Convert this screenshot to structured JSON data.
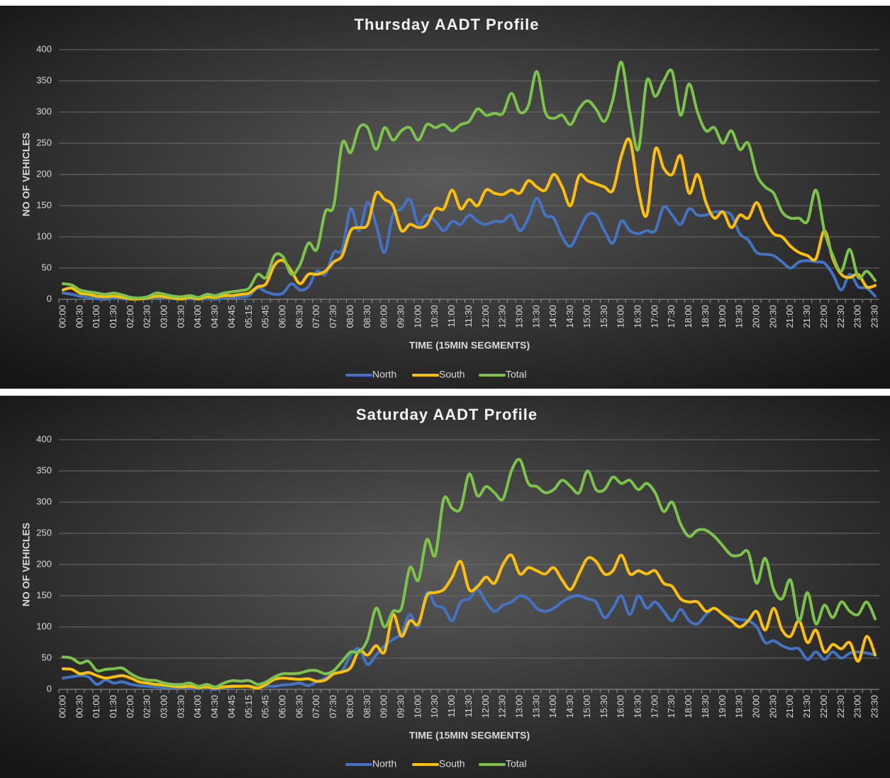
{
  "chart_data": [
    {
      "type": "line",
      "title": "Thursday AADT Profile",
      "x_label": "TIME (15MIN SEGMENTS)",
      "y_label": "NO OF VEHICLES",
      "categories": [
        "00:00",
        null,
        "00:30",
        null,
        "01:00",
        null,
        "01:30",
        null,
        "02:00",
        null,
        "02:30",
        null,
        "03:00",
        null,
        "03:30",
        null,
        "04:00",
        null,
        "04:30",
        null,
        "04:45",
        null,
        "05:15",
        null,
        "05:45",
        null,
        "06:00",
        null,
        "06:30",
        null,
        "07:00",
        null,
        "07:30",
        null,
        "08:00",
        null,
        "08:30",
        null,
        "09:00",
        null,
        "09:30",
        null,
        "10:00",
        null,
        "10:30",
        null,
        "11:00",
        null,
        "11:30",
        null,
        "12:00",
        null,
        "12:30",
        null,
        "13:00",
        null,
        "13:30",
        null,
        "14:00",
        null,
        "14:30",
        null,
        "15:00",
        null,
        "15:30",
        null,
        "16:00",
        null,
        "16:30",
        null,
        "17:00",
        null,
        "17:30",
        null,
        "18:00",
        null,
        "18:30",
        null,
        "19:00",
        null,
        "19:30",
        null,
        "20:00",
        null,
        "20:30",
        null,
        "21:00",
        null,
        "21:30",
        null,
        "22:00",
        null,
        "22:30",
        null,
        "23:00",
        null,
        "23:30"
      ],
      "series": [
        {
          "name": "North",
          "color": "#4472c4",
          "values": [
            10,
            8,
            5,
            3,
            1,
            0,
            2,
            1,
            0,
            0,
            1,
            3,
            2,
            1,
            0,
            1,
            0,
            1,
            0,
            2,
            3,
            4,
            6,
            18,
            12,
            8,
            10,
            25,
            15,
            20,
            45,
            40,
            75,
            80,
            145,
            110,
            155,
            120,
            75,
            135,
            145,
            160,
            120,
            135,
            125,
            110,
            125,
            120,
            135,
            125,
            120,
            125,
            125,
            135,
            110,
            130,
            162,
            135,
            130,
            100,
            85,
            110,
            135,
            135,
            110,
            90,
            125,
            110,
            105,
            110,
            110,
            148,
            135,
            120,
            145,
            135,
            135,
            140,
            140,
            135,
            105,
            95,
            75,
            72,
            70,
            60,
            50,
            60,
            62,
            60,
            58,
            40,
            15,
            40,
            20,
            18,
            5
          ]
        },
        {
          "name": "South",
          "color": "#ffc000",
          "values": [
            15,
            18,
            10,
            8,
            5,
            4,
            5,
            3,
            1,
            1,
            2,
            5,
            4,
            2,
            1,
            3,
            1,
            4,
            3,
            6,
            6,
            8,
            10,
            20,
            25,
            55,
            62,
            45,
            25,
            40,
            40,
            45,
            60,
            70,
            110,
            115,
            120,
            170,
            160,
            150,
            110,
            120,
            115,
            120,
            145,
            145,
            175,
            145,
            160,
            150,
            175,
            170,
            168,
            175,
            170,
            190,
            180,
            175,
            200,
            180,
            150,
            198,
            190,
            185,
            180,
            175,
            230,
            255,
            175,
            135,
            240,
            210,
            200,
            230,
            170,
            200,
            155,
            130,
            140,
            115,
            135,
            130,
            155,
            125,
            105,
            100,
            85,
            75,
            70,
            65,
            110,
            65,
            40,
            35,
            40,
            20,
            22
          ]
        },
        {
          "name": "Total",
          "color": "#7cc34a",
          "values": [
            25,
            23,
            15,
            12,
            10,
            8,
            10,
            7,
            3,
            2,
            4,
            10,
            8,
            5,
            4,
            6,
            3,
            8,
            6,
            10,
            12,
            14,
            18,
            40,
            35,
            70,
            68,
            40,
            55,
            90,
            80,
            140,
            150,
            250,
            235,
            275,
            275,
            240,
            275,
            255,
            270,
            275,
            255,
            280,
            275,
            280,
            270,
            280,
            285,
            305,
            295,
            298,
            298,
            330,
            300,
            310,
            365,
            300,
            290,
            295,
            280,
            305,
            318,
            305,
            285,
            320,
            380,
            300,
            240,
            350,
            325,
            350,
            365,
            295,
            345,
            300,
            270,
            275,
            250,
            270,
            240,
            250,
            200,
            180,
            170,
            140,
            130,
            130,
            125,
            175,
            110,
            70,
            45,
            80,
            35,
            45,
            30
          ]
        }
      ],
      "ylim": [
        0,
        400
      ],
      "yticks": [
        0,
        50,
        100,
        150,
        200,
        250,
        300,
        350,
        400
      ],
      "grid": true,
      "legend": "bottom"
    },
    {
      "type": "line",
      "title": "Saturday AADT Profile",
      "x_label": "TIME (15MIN SEGMENTS)",
      "y_label": "NO OF VEHICLES",
      "categories": [
        "00:00",
        null,
        "00:30",
        null,
        "01:00",
        null,
        "01:30",
        null,
        "02:00",
        null,
        "02:30",
        null,
        "03:00",
        null,
        "03:30",
        null,
        "04:00",
        null,
        "04:30",
        null,
        "04:45",
        null,
        "05:15",
        null,
        "05:45",
        null,
        "06:00",
        null,
        "06:30",
        null,
        "07:00",
        null,
        "07:30",
        null,
        "08:00",
        null,
        "08:30",
        null,
        "09:00",
        null,
        "09:30",
        null,
        "10:00",
        null,
        "10:30",
        null,
        "11:00",
        null,
        "11:30",
        null,
        "12:00",
        null,
        "12:30",
        null,
        "13:00",
        null,
        "13:30",
        null,
        "14:00",
        null,
        "14:30",
        null,
        "15:00",
        null,
        "15:30",
        null,
        "16:00",
        null,
        "16:30",
        null,
        "17:00",
        null,
        "17:30",
        null,
        "18:00",
        null,
        "18:30",
        null,
        "19:00",
        null,
        "19:30",
        null,
        "20:00",
        null,
        "20:30",
        null,
        "21:00",
        null,
        "21:30",
        null,
        "22:00",
        null,
        "22:30",
        null,
        "23:00",
        null,
        "23:30"
      ],
      "series": [
        {
          "name": "North",
          "color": "#4472c4",
          "values": [
            18,
            20,
            22,
            20,
            8,
            15,
            10,
            12,
            8,
            6,
            5,
            4,
            3,
            3,
            2,
            3,
            1,
            2,
            0,
            3,
            4,
            5,
            5,
            3,
            5,
            5,
            7,
            8,
            10,
            6,
            12,
            18,
            25,
            30,
            55,
            65,
            40,
            55,
            70,
            80,
            90,
            120,
            100,
            155,
            135,
            130,
            110,
            140,
            145,
            160,
            140,
            125,
            135,
            140,
            150,
            145,
            130,
            125,
            130,
            140,
            148,
            150,
            145,
            140,
            115,
            130,
            150,
            120,
            150,
            130,
            140,
            125,
            110,
            128,
            110,
            105,
            120,
            130,
            120,
            115,
            112,
            110,
            100,
            75,
            78,
            70,
            65,
            65,
            48,
            60,
            48,
            60,
            50,
            58,
            60,
            58,
            55
          ]
        },
        {
          "name": "South",
          "color": "#ffc000",
          "values": [
            33,
            32,
            25,
            27,
            22,
            18,
            20,
            22,
            18,
            12,
            10,
            8,
            7,
            5,
            4,
            5,
            3,
            4,
            2,
            4,
            5,
            5,
            5,
            2,
            8,
            16,
            18,
            17,
            16,
            17,
            13,
            15,
            25,
            28,
            35,
            62,
            55,
            70,
            60,
            120,
            85,
            110,
            105,
            150,
            155,
            160,
            180,
            205,
            160,
            165,
            180,
            170,
            200,
            215,
            185,
            195,
            190,
            185,
            195,
            175,
            160,
            185,
            210,
            205,
            185,
            190,
            215,
            185,
            190,
            185,
            190,
            170,
            165,
            145,
            140,
            140,
            125,
            130,
            120,
            110,
            100,
            110,
            125,
            95,
            130,
            95,
            85,
            110,
            75,
            95,
            60,
            72,
            65,
            75,
            45,
            85,
            55
          ]
        },
        {
          "name": "Total",
          "color": "#7cc34a",
          "values": [
            52,
            50,
            42,
            45,
            30,
            32,
            33,
            34,
            25,
            18,
            15,
            14,
            10,
            8,
            8,
            10,
            5,
            8,
            4,
            10,
            14,
            13,
            14,
            8,
            12,
            20,
            25,
            25,
            26,
            30,
            30,
            25,
            30,
            45,
            60,
            60,
            80,
            130,
            100,
            125,
            130,
            195,
            175,
            240,
            215,
            305,
            290,
            290,
            345,
            310,
            325,
            315,
            305,
            350,
            368,
            330,
            325,
            315,
            320,
            335,
            325,
            315,
            350,
            320,
            320,
            340,
            330,
            335,
            320,
            330,
            315,
            285,
            300,
            265,
            245,
            255,
            255,
            245,
            230,
            215,
            215,
            220,
            170,
            210,
            160,
            145,
            175,
            110,
            155,
            105,
            135,
            115,
            140,
            125,
            120,
            140,
            113
          ]
        }
      ],
      "ylim": [
        0,
        400
      ],
      "yticks": [
        0,
        50,
        100,
        150,
        200,
        250,
        300,
        350,
        400
      ],
      "grid": true,
      "legend": "bottom"
    }
  ]
}
